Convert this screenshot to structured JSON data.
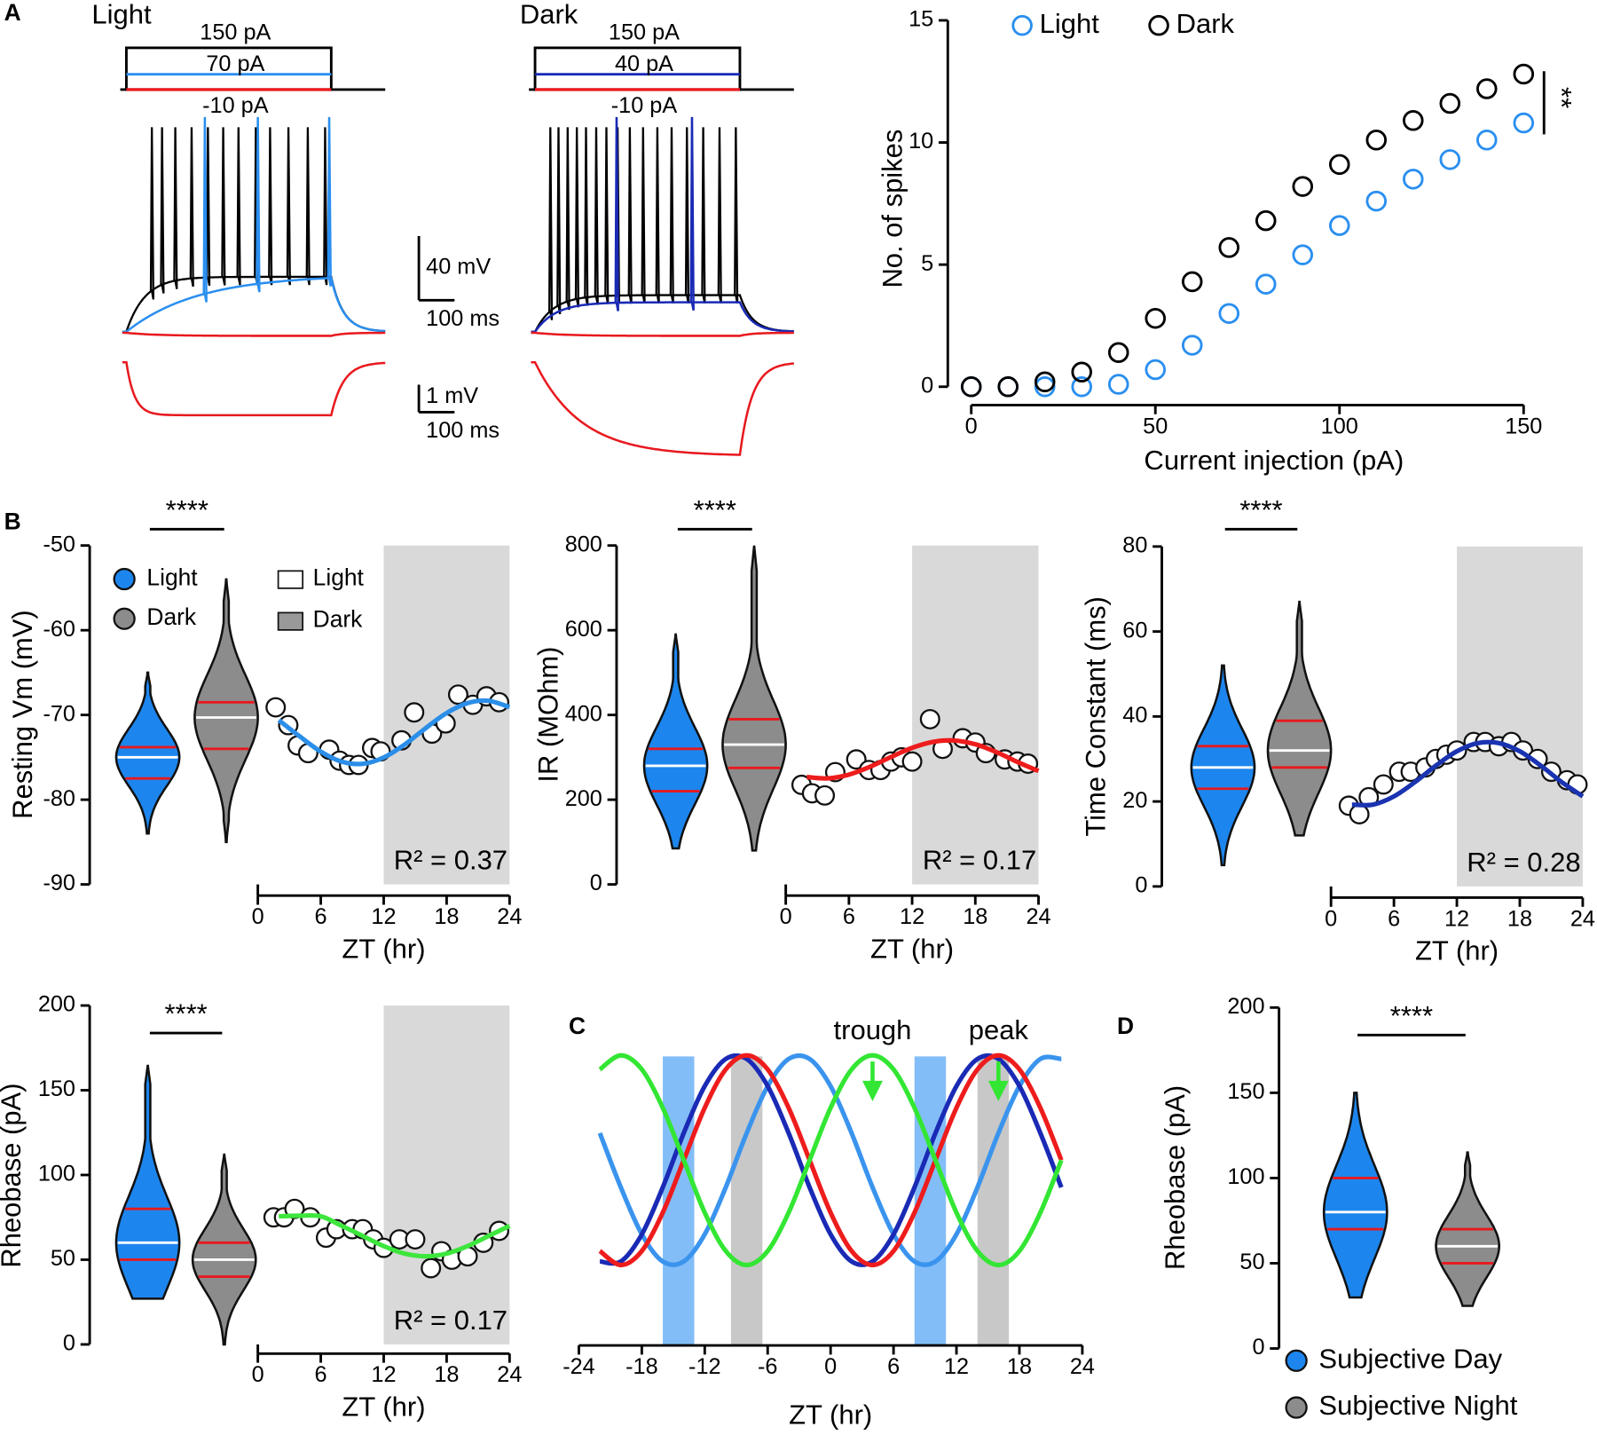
{
  "panel_labels": [
    "A",
    "B",
    "C",
    "D"
  ],
  "traces": [
    {
      "title": "Light",
      "title_color": "#2a8ff0",
      "steps": [
        {
          "label": "150 pA",
          "color": "#000000"
        },
        {
          "label": "70 pA",
          "color": "#2a8ff0"
        },
        {
          "label": "-10 pA",
          "color": "#e8191e"
        }
      ]
    },
    {
      "title": "Dark",
      "title_color": "#000000",
      "steps": [
        {
          "label": "150 pA",
          "color": "#000000"
        },
        {
          "label": "40 pA",
          "color": "#1a2ab5"
        },
        {
          "label": "-10 pA",
          "color": "#e8191e"
        }
      ]
    }
  ],
  "scale_bars": [
    {
      "amplitude": "40 mV",
      "time": "100 ms"
    },
    {
      "amplitude": "1 mV",
      "time": "100 ms"
    }
  ],
  "chart_data": [
    {
      "type": "scatter",
      "xlabel": "Current injection (pA)",
      "ylabel": "No. of spikes",
      "x": [
        0,
        10,
        20,
        30,
        40,
        50,
        60,
        70,
        80,
        90,
        100,
        110,
        120,
        130,
        140,
        150
      ],
      "series": [
        {
          "name": "Light",
          "color": "#2a8ff0",
          "values": [
            0,
            0,
            0,
            0,
            0.1,
            0.7,
            1.7,
            3,
            4.2,
            5.4,
            6.6,
            7.6,
            8.5,
            9.3,
            10.1,
            10.8
          ]
        },
        {
          "name": "Dark",
          "color": "#000000",
          "values": [
            0,
            0,
            0.2,
            0.6,
            1.4,
            2.8,
            4.3,
            5.7,
            6.8,
            8.2,
            9.1,
            10.1,
            10.9,
            11.6,
            12.2,
            12.8
          ]
        }
      ],
      "xlim": [
        0,
        150
      ],
      "xticks": [
        0,
        50,
        100,
        150
      ],
      "ylim": [
        0,
        15
      ],
      "yticks": [
        0,
        5,
        10,
        15
      ],
      "legend": "top",
      "significance": "**"
    },
    {
      "type": "violin",
      "ylabel": "Resting Vm (mV)",
      "ylim": [
        -90,
        -50
      ],
      "yticks": [
        -90,
        -80,
        -70,
        -60,
        -50
      ],
      "significance": "****",
      "groups": [
        {
          "name": "Light",
          "color": "#1d86ee",
          "median": -75,
          "q1": -77.5,
          "q3": -73.8,
          "min": -84,
          "max": -65
        },
        {
          "name": "Dark",
          "color": "#8c8c8c",
          "median": -70.3,
          "q1": -74,
          "q3": -68.5,
          "min": -85,
          "max": -54
        }
      ],
      "phase_legend": [
        {
          "name": "Light",
          "color": "#ffffff"
        },
        {
          "name": "Dark",
          "color": "#999999"
        }
      ]
    },
    {
      "type": "zt",
      "xlabel": "ZT (hr)",
      "xlim": [
        0,
        24
      ],
      "xticks": [
        0,
        6,
        12,
        18,
        24
      ],
      "ylim": [
        -90,
        -50
      ],
      "dark_phase": [
        12,
        24
      ],
      "x": [
        1.7,
        2.9,
        3.8,
        4.8,
        6.8,
        7.8,
        8.7,
        9.6,
        10.9,
        11.7,
        13.7,
        14.9,
        16.6,
        17.9,
        19.1,
        20.5,
        21.8,
        23
      ],
      "values": [
        -69.1,
        -71.2,
        -73.6,
        -74.5,
        -74.1,
        -75.4,
        -75.9,
        -75.9,
        -73.9,
        -74.3,
        -73,
        -69.7,
        -72.2,
        -71,
        -67.6,
        -68.8,
        -67.8,
        -68.5
      ],
      "fit": {
        "color": "#2b8ee8",
        "x": [
          2,
          4,
          6,
          8,
          10,
          12,
          14,
          16,
          18,
          20,
          22,
          24
        ],
        "values": [
          -70.61,
          -72.54,
          -74.33,
          -75.51,
          -75.77,
          -75.02,
          -73.49,
          -71.56,
          -69.77,
          -68.59,
          -68.33,
          -69.08
        ]
      },
      "annotation": "R² = 0.37"
    },
    {
      "type": "violin",
      "ylabel": "IR (MOhm)",
      "ylim": [
        0,
        800
      ],
      "yticks": [
        0,
        200,
        400,
        600,
        800
      ],
      "significance": "****",
      "groups": [
        {
          "color": "#1d86ee",
          "median": 280,
          "q1": 220,
          "q3": 320,
          "min": 85,
          "max": 590
        },
        {
          "color": "#8c8c8c",
          "median": 330,
          "q1": 275,
          "q3": 390,
          "min": 80,
          "max": 800
        }
      ]
    },
    {
      "type": "zt",
      "xlabel": "ZT (hr)",
      "xlim": [
        0,
        24
      ],
      "xticks": [
        0,
        6,
        12,
        18,
        24
      ],
      "ylim": [
        0,
        800
      ],
      "dark_phase": [
        12,
        24
      ],
      "x": [
        1.5,
        2.5,
        3.7,
        4.7,
        6.7,
        7.9,
        9,
        10,
        11,
        12,
        13.7,
        14.9,
        16.8,
        18,
        19,
        20.8,
        22,
        23
      ],
      "values": [
        235,
        215,
        210,
        265,
        295,
        270,
        270,
        290,
        300,
        290,
        390,
        320,
        345,
        335,
        310,
        295,
        290,
        285
      ],
      "fit": {
        "color": "#ee1c1c",
        "x": [
          2,
          4,
          6,
          8,
          10,
          12,
          14,
          16,
          18,
          20,
          22,
          24
        ],
        "values": [
          253.4,
          250.4,
          259.3,
          277.8,
          300.9,
          322.4,
          336.6,
          339.6,
          330.7,
          312.2,
          289.1,
          267.6
        ]
      },
      "annotation": "R² = 0.17"
    },
    {
      "type": "violin",
      "ylabel": "Time Constant (ms)",
      "ylim": [
        0,
        80
      ],
      "yticks": [
        0,
        20,
        40,
        60,
        80
      ],
      "significance": "****",
      "groups": [
        {
          "color": "#1d86ee",
          "median": 28,
          "q1": 23,
          "q3": 33,
          "min": 5,
          "max": 52
        },
        {
          "color": "#8c8c8c",
          "median": 32,
          "q1": 28,
          "q3": 39,
          "min": 12,
          "max": 67
        }
      ]
    },
    {
      "type": "zt",
      "xlabel": "ZT (hr)",
      "xlim": [
        0,
        24
      ],
      "xticks": [
        0,
        6,
        12,
        18,
        24
      ],
      "ylim": [
        0,
        80
      ],
      "dark_phase": [
        12,
        24
      ],
      "x": [
        1.7,
        2.7,
        3.6,
        5,
        6.5,
        7.6,
        9,
        10,
        11,
        12,
        13.6,
        14.7,
        16,
        17.2,
        18.3,
        19.7,
        21,
        22.5,
        23.5
      ],
      "values": [
        19,
        17,
        21,
        24,
        27,
        27,
        28,
        30,
        31,
        32,
        34,
        34,
        33,
        34,
        32,
        30,
        27,
        25,
        24
      ],
      "fit": {
        "color": "#1a33b0",
        "x": [
          2,
          4,
          6,
          8,
          10,
          12,
          14,
          16,
          18,
          20,
          22,
          24
        ],
        "values": [
          19.26,
          19.26,
          21.2,
          24.56,
          28.44,
          31.8,
          33.74,
          33.74,
          31.8,
          28.44,
          24.56,
          21.2
        ]
      },
      "annotation": "R² = 0.28"
    },
    {
      "type": "violin",
      "ylabel": "Rheobase (pA)",
      "ylim": [
        0,
        200
      ],
      "yticks": [
        0,
        50,
        100,
        150,
        200
      ],
      "significance": "****",
      "groups": [
        {
          "color": "#1d86ee",
          "median": 60,
          "q1": 50,
          "q3": 80,
          "min": 27,
          "max": 165
        },
        {
          "color": "#8c8c8c",
          "median": 50,
          "q1": 40,
          "q3": 60,
          "min": 0,
          "max": 112
        }
      ]
    },
    {
      "type": "zt",
      "xlabel": "ZT (hr)",
      "xlim": [
        0,
        24
      ],
      "xticks": [
        0,
        6,
        12,
        18,
        24
      ],
      "ylim": [
        0,
        200
      ],
      "dark_phase": [
        12,
        24
      ],
      "x": [
        1.5,
        2.5,
        3.5,
        5,
        6.5,
        7.5,
        9,
        10,
        11,
        12,
        13.5,
        15,
        16.5,
        17.5,
        18.5,
        20,
        21.5,
        23
      ],
      "values": [
        75,
        75,
        80,
        75,
        63,
        68,
        68,
        68,
        62,
        57,
        62,
        62,
        45,
        55,
        50,
        52,
        60,
        67
      ],
      "fit": {
        "color": "#3de63d",
        "x": [
          2,
          4,
          6,
          8,
          10,
          12,
          14,
          16,
          18,
          20,
          22,
          24
        ],
        "values": [
          75.6,
          76,
          75.6,
          70,
          64,
          58,
          53.6,
          52,
          53.6,
          58,
          64,
          70
        ]
      },
      "annotation": "R² = 0.17"
    },
    {
      "type": "sine",
      "xlabel": "ZT (hr)",
      "xlim": [
        -24,
        24
      ],
      "xticks": [
        -24,
        -18,
        -12,
        -6,
        0,
        6,
        12,
        18,
        24
      ],
      "ylim": [
        -1,
        1
      ],
      "x": [
        -22,
        -20,
        -18,
        -16,
        -14,
        -12,
        -10,
        -8,
        -6,
        -4,
        -2,
        0,
        2,
        4,
        6,
        8,
        10,
        12,
        14,
        16,
        18,
        20,
        22
      ],
      "bands": [
        {
          "x": [
            -16,
            -13
          ],
          "color": "#83bdf7"
        },
        {
          "x": [
            -9.5,
            -6.5
          ],
          "color": "#c8c8c8"
        },
        {
          "x": [
            8,
            11
          ],
          "color": "#83bdf7"
        },
        {
          "x": [
            14,
            17
          ],
          "color": "#c8c8c8"
        }
      ],
      "series": [
        {
          "color": "#3a94ee",
          "values": [
            0.259,
            -0.259,
            -0.707,
            -0.966,
            -0.966,
            -0.707,
            -0.259,
            0.259,
            0.707,
            0.966,
            0.966,
            0.707,
            0.259,
            -0.259,
            -0.707,
            -0.966,
            -0.966,
            -0.707,
            -0.259,
            0.259,
            0.707,
            0.966,
            0.966
          ]
        },
        {
          "color": "#1a2ab5",
          "values": [
            -0.966,
            -0.966,
            -0.707,
            -0.259,
            0.259,
            0.707,
            0.966,
            0.966,
            0.707,
            0.259,
            -0.259,
            -0.707,
            -0.966,
            -0.966,
            -0.707,
            -0.259,
            0.259,
            0.707,
            0.966,
            0.966,
            0.707,
            0.259,
            -0.259
          ]
        },
        {
          "color": "#ee1c1c",
          "values": [
            -0.866,
            -1,
            -0.866,
            -0.5,
            0,
            0.5,
            0.866,
            1,
            0.866,
            0.5,
            0,
            -0.5,
            -0.866,
            -1,
            -0.866,
            -0.5,
            0,
            0.5,
            0.866,
            1,
            0.866,
            0.5,
            0
          ]
        },
        {
          "color": "#33e633",
          "values": [
            0.866,
            1,
            0.866,
            0.5,
            0,
            -0.5,
            -0.866,
            -1,
            -0.866,
            -0.5,
            0,
            0.5,
            0.866,
            1,
            0.866,
            0.5,
            0,
            -0.5,
            -0.866,
            -1,
            -0.866,
            -0.5,
            0
          ]
        }
      ],
      "annotations": [
        {
          "text": "trough",
          "x": 4
        },
        {
          "text": "peak",
          "x": 16
        }
      ],
      "arrow_color": "#33e633"
    },
    {
      "type": "violin",
      "ylabel": "Rheobase (pA)",
      "ylim": [
        0,
        200
      ],
      "yticks": [
        0,
        50,
        100,
        150,
        200
      ],
      "significance": "****",
      "groups": [
        {
          "name": "Subjective Day",
          "color": "#1d86ee",
          "median": 80,
          "q1": 70,
          "q3": 100,
          "min": 30,
          "max": 150
        },
        {
          "name": "Subjective Night",
          "color": "#8c8c8c",
          "median": 60,
          "q1": 50,
          "q3": 70,
          "min": 25,
          "max": 115
        }
      ]
    }
  ]
}
